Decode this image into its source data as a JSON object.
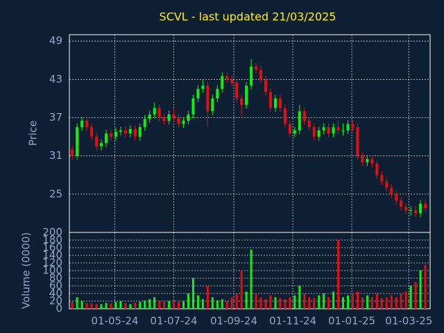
{
  "chart_data": [
    {
      "type": "candlestick",
      "title": "SCVL - last updated 21/03/2025",
      "ylabel": "Price",
      "x": [
        "2024-03-18",
        "2024-03-23",
        "2024-03-28",
        "2024-04-02",
        "2024-04-07",
        "2024-04-12",
        "2024-04-17",
        "2024-04-22",
        "2024-04-27",
        "2024-05-02",
        "2024-05-07",
        "2024-05-12",
        "2024-05-17",
        "2024-05-22",
        "2024-05-27",
        "2024-06-01",
        "2024-06-06",
        "2024-06-11",
        "2024-06-16",
        "2024-06-21",
        "2024-06-26",
        "2024-07-01",
        "2024-07-06",
        "2024-07-11",
        "2024-07-16",
        "2024-07-21",
        "2024-07-26",
        "2024-07-31",
        "2024-08-05",
        "2024-08-10",
        "2024-08-15",
        "2024-08-20",
        "2024-08-25",
        "2024-08-30",
        "2024-09-04",
        "2024-09-09",
        "2024-09-14",
        "2024-09-19",
        "2024-09-24",
        "2024-09-29",
        "2024-10-04",
        "2024-10-09",
        "2024-10-14",
        "2024-10-19",
        "2024-10-24",
        "2024-10-29",
        "2024-11-03",
        "2024-11-08",
        "2024-11-13",
        "2024-11-18",
        "2024-11-23",
        "2024-11-28",
        "2024-12-03",
        "2024-12-08",
        "2024-12-13",
        "2024-12-18",
        "2024-12-23",
        "2024-12-28",
        "2025-01-02",
        "2025-01-07",
        "2025-01-12",
        "2025-01-17",
        "2025-01-22",
        "2025-01-27",
        "2025-02-01",
        "2025-02-06",
        "2025-02-11",
        "2025-02-16",
        "2025-02-21",
        "2025-02-26",
        "2025-03-03",
        "2025-03-08",
        "2025-03-13",
        "2025-03-18"
      ],
      "open": [
        32.0,
        31.0,
        35.5,
        36.5,
        35.5,
        34.0,
        32.5,
        33.0,
        34.5,
        34.0,
        34.8,
        35.0,
        34.5,
        35.2,
        34.0,
        35.5,
        36.8,
        37.5,
        38.5,
        37.0,
        36.5,
        37.5,
        37.0,
        36.0,
        36.5,
        37.5,
        40.0,
        41.5,
        42.0,
        38.0,
        40.0,
        41.5,
        43.5,
        43.0,
        42.5,
        40.0,
        39.0,
        42.0,
        45.0,
        44.5,
        43.0,
        41.0,
        38.5,
        40.0,
        38.5,
        36.0,
        34.5,
        35.0,
        38.0,
        36.5,
        35.5,
        34.0,
        35.0,
        35.5,
        34.5,
        35.5,
        35.0,
        35.0,
        36.0,
        35.5,
        31.0,
        30.0,
        30.5,
        29.8,
        28.0,
        27.0,
        26.0,
        25.0,
        24.0,
        23.0,
        22.5,
        22.5,
        22.0,
        23.5
      ],
      "high": [
        32.6,
        36.1,
        37.1,
        37.1,
        36.1,
        34.6,
        33.6,
        35.1,
        35.1,
        35.4,
        35.6,
        35.6,
        35.8,
        35.8,
        36.1,
        37.4,
        38.1,
        39.4,
        39.1,
        37.6,
        38.1,
        38.4,
        37.6,
        37.1,
        38.1,
        40.6,
        42.1,
        42.9,
        42.6,
        40.6,
        42.1,
        44.1,
        44.1,
        43.6,
        43.1,
        40.6,
        42.6,
        46.2,
        45.6,
        45.1,
        43.6,
        41.6,
        40.6,
        40.6,
        39.1,
        36.6,
        35.6,
        39.0,
        38.6,
        37.1,
        36.1,
        35.6,
        36.1,
        36.1,
        36.1,
        36.6,
        36.1,
        36.6,
        36.6,
        36.1,
        31.6,
        31.1,
        31.1,
        30.4,
        28.6,
        27.6,
        26.6,
        25.6,
        24.6,
        23.6,
        23.1,
        23.1,
        24.1,
        24.1
      ],
      "low": [
        30.4,
        30.4,
        34.9,
        34.9,
        33.4,
        31.9,
        31.9,
        32.4,
        33.4,
        33.4,
        34.2,
        33.9,
        33.9,
        33.4,
        33.4,
        34.9,
        36.2,
        36.9,
        36.4,
        35.9,
        35.9,
        36.4,
        35.4,
        35.4,
        35.9,
        36.9,
        39.4,
        40.9,
        35.5,
        37.4,
        39.4,
        40.9,
        42.4,
        41.9,
        39.4,
        37.2,
        38.4,
        41.4,
        43.9,
        42.4,
        40.4,
        37.9,
        37.9,
        37.9,
        35.4,
        33.9,
        33.9,
        34.4,
        35.9,
        34.9,
        33.4,
        33.4,
        34.4,
        33.9,
        33.9,
        34.4,
        34.2,
        34.4,
        34.9,
        30.4,
        29.4,
        29.4,
        29.2,
        27.4,
        26.4,
        25.4,
        24.4,
        23.4,
        22.4,
        21.9,
        21.6,
        21.4,
        21.4,
        22.2
      ],
      "close": [
        31.0,
        35.5,
        36.5,
        35.5,
        34.0,
        32.5,
        33.0,
        34.5,
        34.0,
        34.8,
        35.0,
        34.5,
        35.2,
        34.0,
        35.5,
        36.8,
        37.5,
        38.5,
        37.0,
        36.5,
        37.5,
        37.0,
        36.0,
        36.5,
        37.5,
        40.0,
        41.5,
        42.0,
        38.0,
        40.0,
        41.5,
        43.5,
        43.0,
        42.5,
        40.0,
        39.0,
        42.0,
        45.0,
        44.5,
        43.0,
        41.0,
        38.5,
        40.0,
        38.5,
        36.0,
        34.5,
        35.0,
        38.0,
        36.5,
        35.5,
        34.0,
        35.0,
        35.5,
        34.5,
        35.5,
        35.0,
        35.0,
        36.0,
        35.5,
        31.0,
        30.0,
        30.5,
        29.8,
        28.0,
        27.0,
        26.0,
        25.0,
        24.0,
        23.0,
        22.5,
        22.5,
        22.0,
        23.5,
        22.8
      ],
      "up_color": "#11ee11",
      "down_color": "#e01010",
      "xlim": [
        "2024-03-15",
        "2025-03-23"
      ],
      "xticks": [
        {
          "value": "2024-05-01",
          "label": "01-05-24"
        },
        {
          "value": "2024-07-01",
          "label": "01-07-24"
        },
        {
          "value": "2024-09-01",
          "label": "01-09-24"
        },
        {
          "value": "2024-11-01",
          "label": "01-11-24"
        },
        {
          "value": "2025-01-01",
          "label": "01-01-25"
        },
        {
          "value": "2025-03-01",
          "label": "01-03-25"
        }
      ],
      "ylim": [
        19,
        50
      ],
      "yticks": [
        25,
        31,
        37,
        43,
        49
      ],
      "grid": true
    },
    {
      "type": "bar",
      "ylabel": "Volume (0000)",
      "values": [
        18,
        30,
        20,
        15,
        14,
        12,
        12,
        15,
        14,
        18,
        20,
        15,
        12,
        16,
        18,
        22,
        25,
        30,
        20,
        18,
        20,
        22,
        18,
        20,
        40,
        80,
        35,
        25,
        60,
        30,
        22,
        25,
        20,
        30,
        40,
        100,
        45,
        155,
        40,
        30,
        25,
        35,
        30,
        28,
        25,
        30,
        35,
        60,
        40,
        30,
        28,
        35,
        40,
        30,
        45,
        180,
        30,
        35,
        40,
        45,
        30,
        35,
        30,
        40,
        28,
        30,
        35,
        30,
        38,
        45,
        60,
        70,
        100,
        115
      ],
      "ylim": [
        0,
        200
      ],
      "yticks": [
        0,
        20,
        40,
        60,
        80,
        100,
        120,
        140,
        160,
        180,
        200
      ],
      "grid": true
    }
  ]
}
